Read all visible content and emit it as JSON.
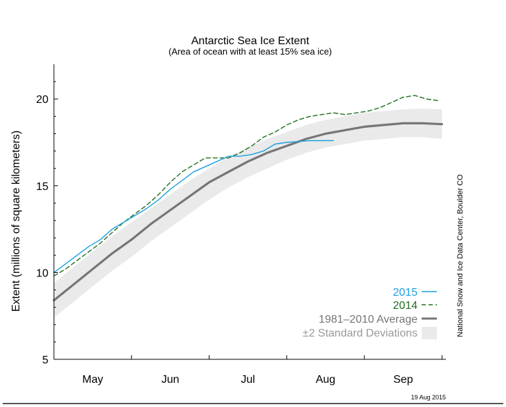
{
  "chart_data": {
    "type": "line",
    "title": "Antarctic Sea Ice Extent",
    "subtitle": "(Area of ocean with at least 15% sea ice)",
    "ylabel": "Extent (millions of square kilometers)",
    "xlabel": "",
    "ylim": [
      5,
      22
    ],
    "xlim": [
      0,
      5.05
    ],
    "yticks": [
      5,
      10,
      15,
      20
    ],
    "month_labels": [
      "May",
      "Jun",
      "Jul",
      "Aug",
      "Sep"
    ],
    "grid": false,
    "legend_position": "bottom-right",
    "series": [
      {
        "name": "2015",
        "style": "solid",
        "color": "#1a9fe0",
        "x": [
          0,
          0.15,
          0.3,
          0.45,
          0.6,
          0.75,
          0.9,
          1.05,
          1.2,
          1.35,
          1.5,
          1.65,
          1.8,
          1.95,
          2.1,
          2.25,
          2.4,
          2.55,
          2.7,
          2.85,
          3.0,
          3.15,
          3.3,
          3.45,
          3.6
        ],
        "y": [
          10.0,
          10.5,
          11.0,
          11.5,
          11.9,
          12.5,
          12.9,
          13.3,
          13.7,
          14.2,
          14.8,
          15.3,
          15.8,
          16.1,
          16.4,
          16.7,
          16.7,
          16.8,
          17.0,
          17.4,
          17.5,
          17.55,
          17.6,
          17.6,
          17.6
        ]
      },
      {
        "name": "2014",
        "style": "dashed",
        "color": "#1f6e1f",
        "x": [
          0,
          0.15,
          0.3,
          0.45,
          0.6,
          0.75,
          0.9,
          1.05,
          1.2,
          1.35,
          1.5,
          1.65,
          1.8,
          1.95,
          2.1,
          2.25,
          2.4,
          2.55,
          2.7,
          2.85,
          3.0,
          3.15,
          3.3,
          3.45,
          3.6,
          3.75,
          3.9,
          4.05,
          4.2,
          4.35,
          4.5,
          4.65,
          4.8,
          4.95
        ],
        "y": [
          9.8,
          10.2,
          10.7,
          11.2,
          11.7,
          12.3,
          12.9,
          13.4,
          13.9,
          14.5,
          15.2,
          15.8,
          16.2,
          16.6,
          16.6,
          16.6,
          16.9,
          17.3,
          17.8,
          18.1,
          18.5,
          18.8,
          19.0,
          19.1,
          19.2,
          19.1,
          19.2,
          19.3,
          19.5,
          19.8,
          20.1,
          20.2,
          20.0,
          19.9
        ]
      },
      {
        "name": "1981–2010 Average",
        "style": "solid",
        "color": "#767676",
        "x": [
          0,
          0.25,
          0.5,
          0.75,
          1.0,
          1.25,
          1.5,
          1.75,
          2.0,
          2.25,
          2.5,
          2.75,
          3.0,
          3.25,
          3.5,
          3.75,
          4.0,
          4.25,
          4.5,
          4.75,
          5.0
        ],
        "y": [
          8.4,
          9.3,
          10.2,
          11.1,
          11.9,
          12.8,
          13.6,
          14.4,
          15.2,
          15.8,
          16.4,
          16.9,
          17.3,
          17.7,
          18.0,
          18.2,
          18.4,
          18.5,
          18.6,
          18.6,
          18.55
        ]
      }
    ],
    "band": {
      "name": "±2 Standard Deviations",
      "color": "#eaeaea",
      "x": [
        0,
        0.25,
        0.5,
        0.75,
        1.0,
        1.25,
        1.5,
        1.75,
        2.0,
        2.25,
        2.5,
        2.75,
        3.0,
        3.25,
        3.5,
        3.75,
        4.0,
        4.25,
        4.5,
        4.75,
        5.0
      ],
      "upper": [
        9.4,
        10.3,
        11.2,
        12.1,
        12.9,
        13.7,
        14.5,
        15.3,
        16.0,
        16.7,
        17.2,
        17.7,
        18.1,
        18.5,
        18.8,
        19.0,
        19.2,
        19.3,
        19.4,
        19.45,
        19.4
      ],
      "lower": [
        7.4,
        8.3,
        9.2,
        10.1,
        10.9,
        11.8,
        12.6,
        13.4,
        14.2,
        14.9,
        15.5,
        16.0,
        16.5,
        16.9,
        17.2,
        17.4,
        17.6,
        17.7,
        17.8,
        17.8,
        17.7
      ]
    },
    "legend_items": [
      "2015",
      "2014",
      "1981–2010 Average",
      "±2 Standard Deviations"
    ]
  },
  "source_credit": "National Snow and Ice Data Center, Boulder CO",
  "date_stamp": "19 Aug 2015"
}
